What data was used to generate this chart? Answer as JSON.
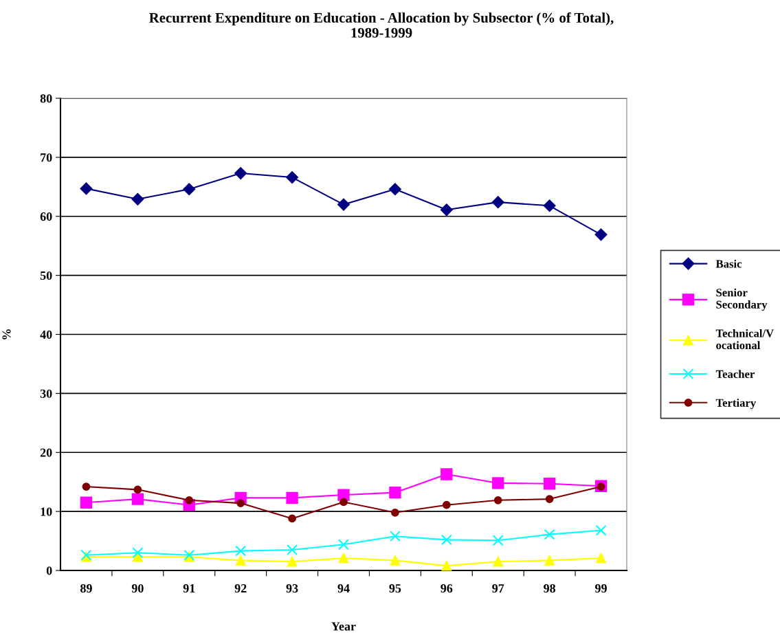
{
  "chart_data": {
    "type": "line",
    "title": "Recurrent Expenditure on Education - Allocation by Subsector (% of Total),\n1989-1999",
    "xlabel": "Year",
    "ylabel": "%",
    "categories": [
      "89",
      "90",
      "91",
      "92",
      "93",
      "94",
      "95",
      "96",
      "97",
      "98",
      "99"
    ],
    "series": [
      {
        "name": "Basic",
        "color": "#000080",
        "marker": "diamond",
        "values": [
          64.7,
          62.9,
          64.6,
          67.3,
          66.6,
          62.0,
          64.6,
          61.1,
          62.4,
          61.8,
          56.9
        ]
      },
      {
        "name": "Senior Secondary",
        "color": "#ff00ff",
        "marker": "square",
        "values": [
          11.5,
          12.1,
          11.1,
          12.3,
          12.3,
          12.8,
          13.2,
          16.3,
          14.8,
          14.7,
          14.3
        ]
      },
      {
        "name": "Technical/Vocational",
        "color": "#ffff00",
        "marker": "triangle",
        "values": [
          2.3,
          2.3,
          2.3,
          1.7,
          1.5,
          2.1,
          1.7,
          0.8,
          1.5,
          1.7,
          2.1
        ]
      },
      {
        "name": "Teacher",
        "color": "#00ffff",
        "marker": "cross",
        "values": [
          2.6,
          3.0,
          2.6,
          3.3,
          3.5,
          4.4,
          5.8,
          5.2,
          5.1,
          6.1,
          6.8
        ]
      },
      {
        "name": "Tertiary",
        "color": "#800000",
        "marker": "circle",
        "values": [
          14.2,
          13.7,
          11.9,
          11.4,
          8.8,
          11.6,
          9.8,
          11.1,
          11.9,
          12.1,
          14.2
        ]
      }
    ],
    "ylim": [
      0,
      80
    ],
    "yticks": [
      0,
      10,
      20,
      30,
      40,
      50,
      60,
      70,
      80
    ],
    "grid": "y",
    "legend": "right",
    "line_style": "solid"
  }
}
